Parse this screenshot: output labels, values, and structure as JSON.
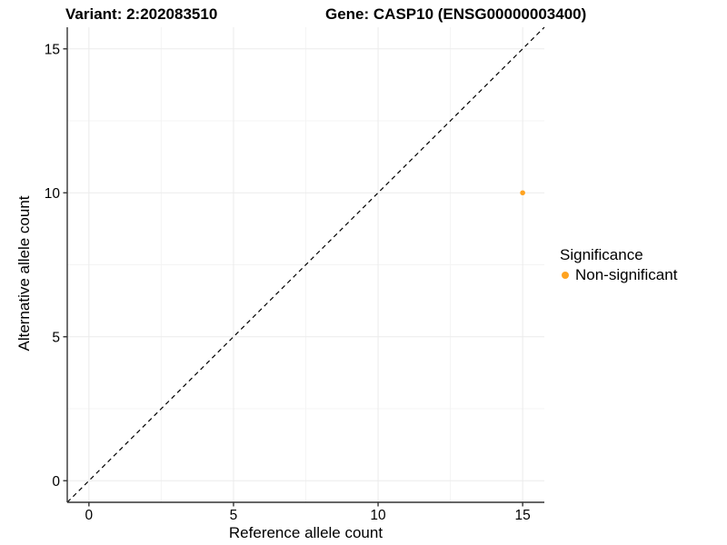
{
  "header": {
    "variant_title": "Variant: 2:202083510",
    "gene_title": "Gene: CASP10 (ENSG00000003400)"
  },
  "chart_data": {
    "type": "scatter",
    "xlabel": "Reference allele count",
    "ylabel": "Alternative allele count",
    "xlim": [
      0,
      15
    ],
    "ylim": [
      0,
      15
    ],
    "x_ticks": [
      0,
      5,
      10,
      15
    ],
    "y_ticks": [
      0,
      5,
      10,
      15
    ],
    "x_minor_ticks": [
      2.5,
      7.5,
      12.5
    ],
    "y_minor_ticks": [
      2.5,
      7.5,
      12.5
    ],
    "grid": true,
    "reference_line": {
      "kind": "identity",
      "style": "dashed",
      "color": "#000000"
    },
    "series": [
      {
        "name": "Non-significant",
        "color": "#FFA320",
        "points": [
          {
            "x": 15,
            "y": 10
          }
        ]
      }
    ],
    "legend": {
      "title": "Significance",
      "position": "right",
      "items": [
        {
          "label": "Non-significant",
          "color": "#FFA320"
        }
      ]
    },
    "colors": {
      "grid_major": "#ebebeb",
      "grid_minor": "#f4f4f4",
      "axis_line": "#333333",
      "tick": "#333333",
      "text": "#000000"
    }
  }
}
